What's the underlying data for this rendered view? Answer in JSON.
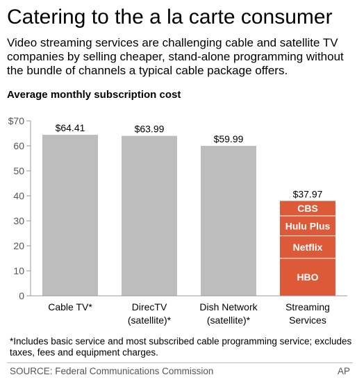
{
  "title": "Catering to the a la carte consumer",
  "subtitle": "Video streaming services are challenging cable and satellite TV companies by selling cheaper, stand-alone programming without the bundle of channels a typical cable package offers.",
  "chart_heading": "Average monthly subscription cost",
  "colors": {
    "bar": "#bdbdbd",
    "stack": "#dd5a38",
    "stack_divider": "#ffffff",
    "axis": "#999999"
  },
  "chart_data": {
    "type": "bar",
    "title": "Average monthly subscription cost",
    "ylim": [
      0,
      70
    ],
    "y_ticks": [
      {
        "value": 0,
        "label": "0"
      },
      {
        "value": 10,
        "label": "10"
      },
      {
        "value": 20,
        "label": "20"
      },
      {
        "value": 30,
        "label": "30"
      },
      {
        "value": 40,
        "label": "40"
      },
      {
        "value": 50,
        "label": "50"
      },
      {
        "value": 60,
        "label": "60"
      },
      {
        "value": 70,
        "label": "$70"
      }
    ],
    "categories": [
      {
        "label_lines": [
          "Cable TV*"
        ],
        "value": 64.41,
        "value_label": "$64.41"
      },
      {
        "label_lines": [
          "DirecTV",
          "(satellite)*"
        ],
        "value": 63.99,
        "value_label": "$63.99"
      },
      {
        "label_lines": [
          "Dish Network",
          "(satellite)*"
        ],
        "value": 59.99,
        "value_label": "$59.99"
      },
      {
        "label_lines": [
          "Streaming",
          "Services"
        ],
        "value": 37.97,
        "value_label": "$37.97",
        "stack": [
          {
            "name": "HBO",
            "value": 14.99
          },
          {
            "name": "Netflix",
            "value": 8.99
          },
          {
            "name": "Hulu Plus",
            "value": 7.99
          },
          {
            "name": "CBS",
            "value": 5.99
          }
        ]
      }
    ],
    "legend": "none",
    "grid": false
  },
  "footnote": "*Includes basic service and most subscribed cable programming service; excludes taxes, fees and equipment charges.",
  "source": "SOURCE: Federal Communications Commission",
  "credit": "AP"
}
